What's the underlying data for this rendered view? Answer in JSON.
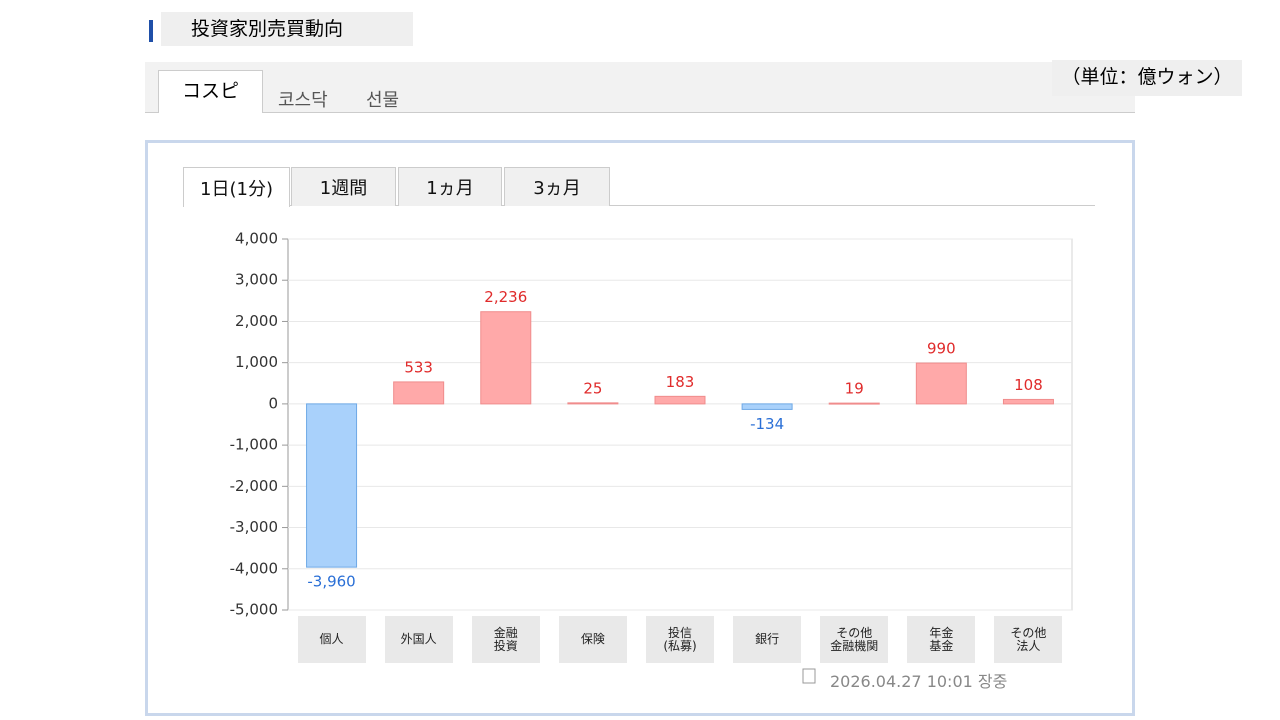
{
  "header": {
    "title": "投資家別売買動向",
    "unit": "（単位：億ウォン）"
  },
  "market_tabs": [
    "コスピ",
    "코스닥",
    "선물"
  ],
  "period_tabs": [
    "1日(1分)",
    "1週間",
    "1ヵ月",
    "3ヵ月"
  ],
  "timestamp": "2026.04.27 10:01 장중",
  "chart_data": {
    "type": "bar",
    "categories": [
      "個人",
      "外国人",
      "金融\n投資",
      "保険",
      "投信\n(私募)",
      "銀行",
      "その他\n金融機関",
      "年金\n基金",
      "その他\n法人"
    ],
    "values": [
      -3960,
      533,
      2236,
      25,
      183,
      -134,
      19,
      990,
      108
    ],
    "value_labels": [
      "-3,960",
      "533",
      "2,236",
      "25",
      "183",
      "-134",
      "19",
      "990",
      "108"
    ],
    "positive_color": "#ffa9a9",
    "negative_color": "#a9d1fb",
    "ylim": [
      -5000,
      4000
    ],
    "yticks": [
      {
        "value": -5000,
        "label": "-5,000"
      },
      {
        "value": -4000,
        "label": "-4,000"
      },
      {
        "value": -3000,
        "label": "-3,000"
      },
      {
        "value": -2000,
        "label": "-2,000"
      },
      {
        "value": -1000,
        "label": "-1,000"
      },
      0,
      {
        "value": 1000,
        "label": "1,000"
      },
      {
        "value": 2000,
        "label": "2,000"
      },
      {
        "value": 3000,
        "label": "3,000"
      },
      {
        "value": 4000,
        "label": "4,000"
      }
    ],
    "grid": true
  }
}
